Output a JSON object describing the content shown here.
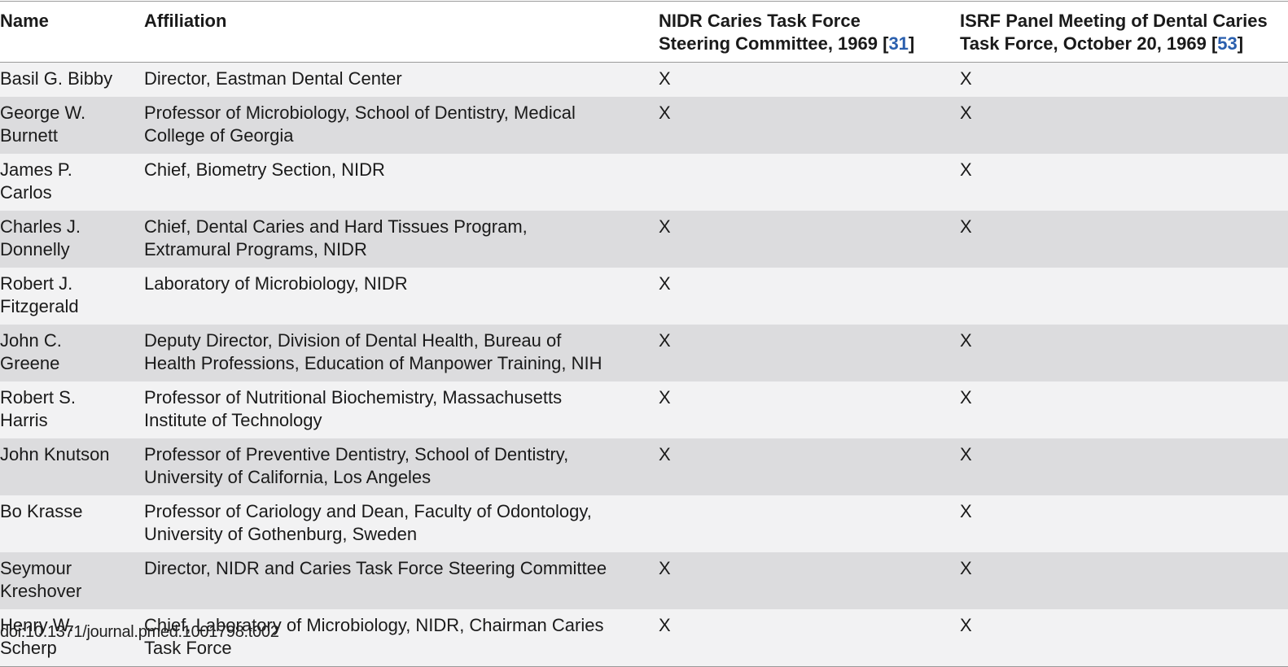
{
  "headers": {
    "name": "Name",
    "affiliation": "Affiliation",
    "nidr_line1": "NIDR Caries Task Force",
    "nidr_line2_prefix": "Steering Committee, 1969 [",
    "nidr_ref": "31",
    "nidr_suffix": "]",
    "isrf_line1": "ISRF Panel Meeting of Dental Caries",
    "isrf_line2_prefix": "Task Force, October 20, 1969 [",
    "isrf_ref": "53",
    "isrf_suffix": "]"
  },
  "rows": [
    {
      "name_1": "Basil G. Bibby",
      "name_2": "",
      "aff_1": "Director, Eastman Dental Center",
      "aff_2": "",
      "nidr": "X",
      "isrf": "X"
    },
    {
      "name_1": "George W.",
      "name_2": "Burnett",
      "aff_1": "Professor of Microbiology, School of Dentistry, Medical",
      "aff_2": "College of Georgia",
      "nidr": "X",
      "isrf": "X"
    },
    {
      "name_1": "James P.",
      "name_2": "Carlos",
      "aff_1": "Chief, Biometry Section, NIDR",
      "aff_2": "",
      "nidr": "",
      "isrf": "X"
    },
    {
      "name_1": "Charles J.",
      "name_2": "Donnelly",
      "aff_1": "Chief, Dental Caries and Hard Tissues Program,",
      "aff_2": "Extramural Programs, NIDR",
      "nidr": "X",
      "isrf": "X"
    },
    {
      "name_1": "Robert J.",
      "name_2": "Fitzgerald",
      "aff_1": "Laboratory of Microbiology, NIDR",
      "aff_2": "",
      "nidr": "X",
      "isrf": ""
    },
    {
      "name_1": "John C.",
      "name_2": "Greene",
      "aff_1": "Deputy Director, Division of Dental Health, Bureau of",
      "aff_2": "Health Professions, Education of Manpower Training, NIH",
      "nidr": "X",
      "isrf": "X"
    },
    {
      "name_1": "Robert S.",
      "name_2": "Harris",
      "aff_1": "Professor of Nutritional Biochemistry, Massachusetts",
      "aff_2": "Institute of Technology",
      "nidr": "X",
      "isrf": "X"
    },
    {
      "name_1": "John Knutson",
      "name_2": "",
      "aff_1": "Professor of Preventive Dentistry, School of Dentistry,",
      "aff_2": "University of California, Los Angeles",
      "nidr": "X",
      "isrf": "X"
    },
    {
      "name_1": "Bo Krasse",
      "name_2": "",
      "aff_1": "Professor of Cariology and Dean, Faculty of Odontology,",
      "aff_2": "University of Gothenburg, Sweden",
      "nidr": "",
      "isrf": "X"
    },
    {
      "name_1": "Seymour",
      "name_2": "Kreshover",
      "aff_1": "Director, NIDR and Caries Task Force Steering Committee",
      "aff_2": "",
      "nidr": "X",
      "isrf": "X"
    },
    {
      "name_1": "Henry W.",
      "name_2": "Scherp",
      "aff_1": "Chief, Laboratory of Microbiology, NIDR, Chairman Caries",
      "aff_2": "Task Force",
      "nidr": "X",
      "isrf": "X"
    }
  ],
  "doi": "doi:10.1371/journal.pmed.1001798.t002"
}
